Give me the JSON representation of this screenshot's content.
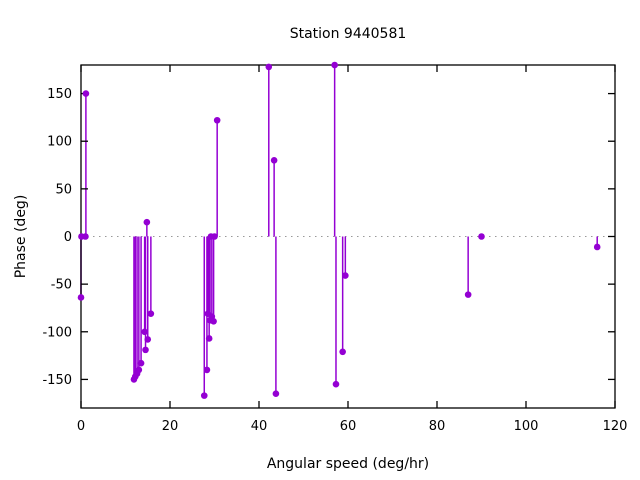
{
  "chart_data": {
    "type": "scatter",
    "style": "impulses+points",
    "marker": "filled-circle",
    "title": "Station 9440581",
    "xlabel": "Angular speed (deg/hr)",
    "ylabel": "Phase (deg)",
    "xlim": [
      0,
      120
    ],
    "ylim": [
      -180,
      180
    ],
    "xticks": [
      0,
      20,
      40,
      60,
      80,
      100,
      120
    ],
    "yticks": [
      -150,
      -100,
      -50,
      0,
      50,
      100,
      150
    ],
    "grid": false,
    "legend": "none",
    "zero_line": true,
    "series_color": "#9400D3",
    "zero_line_color": "#999999",
    "border_color": "#000000",
    "background_color": "#ffffff",
    "points": [
      {
        "x": 0.0,
        "y": -64
      },
      {
        "x": 0.1,
        "y": 0
      },
      {
        "x": 1.0,
        "y": 0
      },
      {
        "x": 1.1,
        "y": 150
      },
      {
        "x": 11.9,
        "y": -150
      },
      {
        "x": 12.2,
        "y": -147
      },
      {
        "x": 12.6,
        "y": -144
      },
      {
        "x": 13.0,
        "y": -140
      },
      {
        "x": 13.5,
        "y": -133
      },
      {
        "x": 14.3,
        "y": -100
      },
      {
        "x": 14.5,
        "y": -119
      },
      {
        "x": 14.8,
        "y": 15
      },
      {
        "x": 15.0,
        "y": -108
      },
      {
        "x": 15.7,
        "y": -81
      },
      {
        "x": 27.7,
        "y": -167
      },
      {
        "x": 28.3,
        "y": -140
      },
      {
        "x": 28.5,
        "y": -81
      },
      {
        "x": 28.8,
        "y": -107
      },
      {
        "x": 29.0,
        "y": -88
      },
      {
        "x": 29.2,
        "y": 0
      },
      {
        "x": 29.4,
        "y": -84
      },
      {
        "x": 29.8,
        "y": -89
      },
      {
        "x": 30.0,
        "y": 0
      },
      {
        "x": 30.6,
        "y": 122
      },
      {
        "x": 42.2,
        "y": 178
      },
      {
        "x": 43.4,
        "y": 80
      },
      {
        "x": 43.8,
        "y": -165
      },
      {
        "x": 57.0,
        "y": 180
      },
      {
        "x": 57.3,
        "y": -155
      },
      {
        "x": 58.8,
        "y": -121
      },
      {
        "x": 59.4,
        "y": -41
      },
      {
        "x": 87.0,
        "y": -61
      },
      {
        "x": 90.0,
        "y": 0
      },
      {
        "x": 116.0,
        "y": -11
      }
    ]
  }
}
